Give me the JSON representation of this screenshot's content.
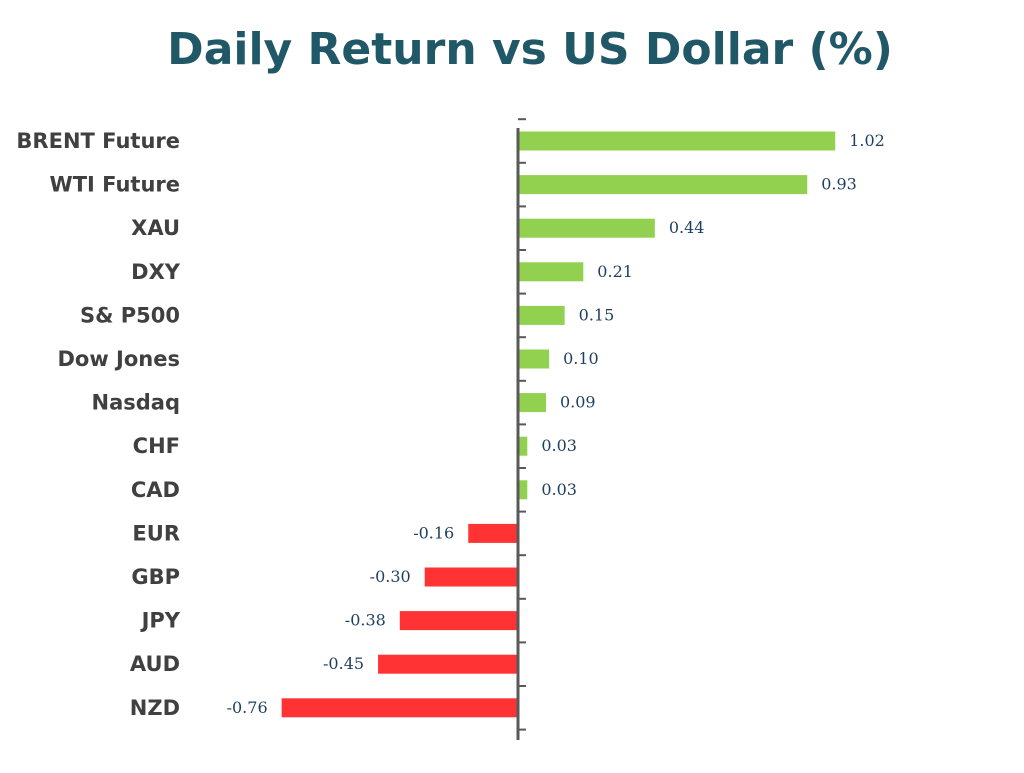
{
  "chart_data": {
    "type": "bar",
    "orientation": "horizontal",
    "title": "Daily Return vs US Dollar (%)",
    "xlabel": "",
    "ylabel": "",
    "categories": [
      "BRENT Future",
      "WTI Future",
      "XAU",
      "DXY",
      "S& P500",
      "Dow Jones",
      "Nasdaq",
      "CHF",
      "CAD",
      "EUR",
      "GBP",
      "JPY",
      "AUD",
      "NZD"
    ],
    "values": [
      1.02,
      0.93,
      0.44,
      0.21,
      0.15,
      0.1,
      0.09,
      0.03,
      0.03,
      -0.16,
      -0.3,
      -0.38,
      -0.45,
      -0.76
    ],
    "value_labels": [
      "1.02",
      "0.93",
      "0.44",
      "0.21",
      "0.15",
      "0.10",
      "0.09",
      "0.03",
      "0.03",
      "-0.16",
      "-0.30",
      "-0.38",
      "-0.45",
      "-0.76"
    ],
    "xlim": [
      -0.76,
      1.02
    ],
    "grid": false,
    "legend": "none",
    "colors": {
      "positive": "#92d050",
      "negative": "#ff3333",
      "title": "#215868",
      "category_label": "#404040",
      "value_label": "#1f3f5f",
      "axis": "#595959"
    }
  }
}
